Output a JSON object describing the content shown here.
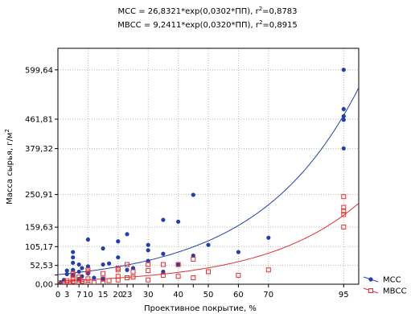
{
  "chart_data": {
    "type": "scatter",
    "title_lines": [
      [
        "МСС = 26,8321*exp(0,0302*ПП), r",
        "2",
        "=0,8783"
      ],
      [
        "МВСС = 9,2411*exp(0,0320*ПП), r",
        "2",
        "=0,8915"
      ]
    ],
    "xlabel": "Проективное покрытие, %",
    "ylabel": [
      "Масса сырья, г/м",
      "2"
    ],
    "xlim": [
      0,
      100
    ],
    "ylim": [
      0,
      660
    ],
    "x_ticks": [
      0,
      3,
      7,
      10,
      15,
      20,
      23,
      25,
      30,
      35,
      40,
      45,
      50,
      60,
      70,
      95
    ],
    "x_tick_labels": [
      "0",
      "3",
      "7",
      "10",
      "15",
      "20",
      "23",
      "",
      "30",
      "",
      "40",
      "",
      "50",
      "60",
      "70",
      "95"
    ],
    "x_grid": [
      0,
      10,
      20,
      30,
      40,
      50,
      60,
      70,
      95
    ],
    "y_ticks": [
      0,
      25.98,
      52.53,
      105.17,
      159.63,
      250.91,
      379.32,
      461.81,
      599.64
    ],
    "y_tick_labels": [
      "0,00",
      "",
      "52,53",
      "105,17",
      "159,63",
      "250,91",
      "379,32",
      "461,81",
      "599,64"
    ],
    "y_grid": [
      0,
      52.53,
      105.17,
      159.63,
      250.91,
      379.32,
      461.81,
      599.64
    ],
    "series": [
      {
        "name": "МСС",
        "marker": "filled-circle",
        "color": "#2440a8",
        "fit": {
          "a": 26.8321,
          "b": 0.0302
        },
        "points": [
          [
            1,
            5
          ],
          [
            2,
            12
          ],
          [
            3,
            28
          ],
          [
            3,
            38
          ],
          [
            5,
            40
          ],
          [
            5,
            25
          ],
          [
            5,
            60
          ],
          [
            5,
            75
          ],
          [
            5,
            90
          ],
          [
            7,
            15
          ],
          [
            7,
            35
          ],
          [
            7,
            55
          ],
          [
            8,
            22
          ],
          [
            8,
            45
          ],
          [
            10,
            30
          ],
          [
            10,
            50
          ],
          [
            10,
            125
          ],
          [
            12,
            18
          ],
          [
            15,
            55
          ],
          [
            15,
            100
          ],
          [
            15,
            15
          ],
          [
            17,
            58
          ],
          [
            20,
            75
          ],
          [
            20,
            120
          ],
          [
            23,
            40
          ],
          [
            23,
            140
          ],
          [
            25,
            45
          ],
          [
            30,
            65
          ],
          [
            30,
            110
          ],
          [
            30,
            95
          ],
          [
            35,
            35
          ],
          [
            35,
            85
          ],
          [
            35,
            180
          ],
          [
            40,
            175
          ],
          [
            40,
            55
          ],
          [
            45,
            250
          ],
          [
            45,
            80
          ],
          [
            50,
            110
          ],
          [
            60,
            90
          ],
          [
            70,
            130
          ],
          [
            95,
            380
          ],
          [
            95,
            460
          ],
          [
            95,
            470
          ],
          [
            95,
            490
          ],
          [
            95,
            600
          ]
        ]
      },
      {
        "name": "МВСС",
        "marker": "open-square",
        "color": "#e03030",
        "fit": {
          "a": 9.2411,
          "b": 0.032
        },
        "points": [
          [
            1,
            0
          ],
          [
            2,
            2
          ],
          [
            3,
            5
          ],
          [
            3,
            10
          ],
          [
            4,
            1
          ],
          [
            5,
            3
          ],
          [
            5,
            8
          ],
          [
            5,
            15
          ],
          [
            5,
            25
          ],
          [
            5,
            30
          ],
          [
            7,
            4
          ],
          [
            7,
            12
          ],
          [
            7,
            20
          ],
          [
            8,
            2
          ],
          [
            8,
            8
          ],
          [
            10,
            0
          ],
          [
            10,
            15
          ],
          [
            10,
            35
          ],
          [
            10,
            40
          ],
          [
            12,
            5
          ],
          [
            15,
            3
          ],
          [
            15,
            15
          ],
          [
            15,
            30
          ],
          [
            17,
            10
          ],
          [
            20,
            12
          ],
          [
            20,
            22
          ],
          [
            20,
            40
          ],
          [
            20,
            45
          ],
          [
            23,
            18
          ],
          [
            23,
            55
          ],
          [
            25,
            20
          ],
          [
            25,
            35
          ],
          [
            30,
            12
          ],
          [
            30,
            38
          ],
          [
            30,
            55
          ],
          [
            35,
            25
          ],
          [
            35,
            55
          ],
          [
            40,
            22
          ],
          [
            40,
            55
          ],
          [
            45,
            18
          ],
          [
            45,
            70
          ],
          [
            50,
            35
          ],
          [
            60,
            25
          ],
          [
            70,
            40
          ],
          [
            95,
            160
          ],
          [
            95,
            195
          ],
          [
            95,
            205
          ],
          [
            95,
            215
          ],
          [
            95,
            245
          ]
        ]
      }
    ],
    "legend_position": "bottom-right"
  }
}
